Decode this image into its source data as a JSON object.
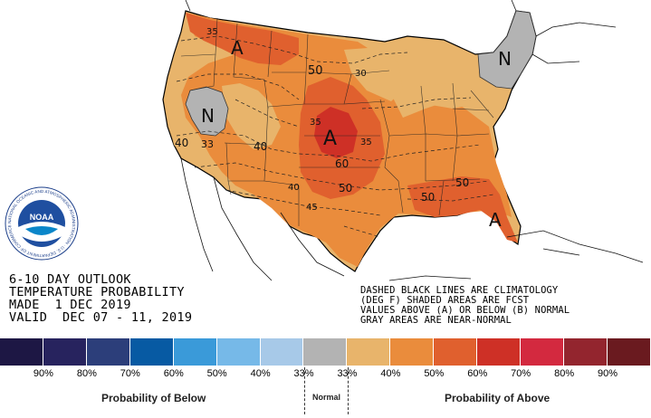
{
  "title": {
    "line1": "6-10 DAY OUTLOOK",
    "line2": "TEMPERATURE PROBABILITY",
    "line3": "MADE  1 DEC 2019",
    "line4": "VALID  DEC 07 - 11, 2019"
  },
  "notes": {
    "line1": "DASHED BLACK LINES ARE CLIMATOLOGY",
    "line2": "(DEG F) SHADED AREAS ARE FCST",
    "line3": "VALUES ABOVE (A) OR BELOW (B) NORMAL",
    "line4": "GRAY AREAS ARE NEAR-NORMAL"
  },
  "logo": {
    "text": "NOAA",
    "ring_text": "NATIONAL OCEANIC AND ATMOSPHERIC ADMINISTRATION · U.S. DEPARTMENT OF COMMERCE"
  },
  "map_labels": {
    "A_nw": "A",
    "A_central": "A",
    "A_se": "A",
    "N_west": "N",
    "N_ne": "N",
    "c35_wa": "35",
    "c50_nd": "50",
    "c30_mn": "30",
    "c40_or": "40",
    "c33_nv": "33",
    "c40_ut": "40",
    "c35_ks": "35",
    "c35_mo": "35",
    "c60_ok": "60",
    "c40_nm": "40",
    "c50_ar": "50",
    "c45_tx": "45",
    "c50_ms": "50",
    "c50_ga": "50"
  },
  "legend": {
    "colors": [
      "#1d1744",
      "#27235e",
      "#2c3e7a",
      "#075aa3",
      "#3a9ad9",
      "#76b9e8",
      "#a7c9e8",
      "#b3b3b3",
      "#e8b46b",
      "#ea8c3c",
      "#e0602e",
      "#ce3026",
      "#d3293f",
      "#93252e",
      "#6a1a1f"
    ],
    "labels": [
      "90%",
      "80%",
      "70%",
      "60%",
      "50%",
      "40%",
      "33%",
      "33%",
      "40%",
      "50%",
      "60%",
      "70%",
      "80%",
      "90%"
    ],
    "below_caption": "Probability of Below",
    "normal_caption": "Normal",
    "above_caption": "Probability of Above"
  }
}
